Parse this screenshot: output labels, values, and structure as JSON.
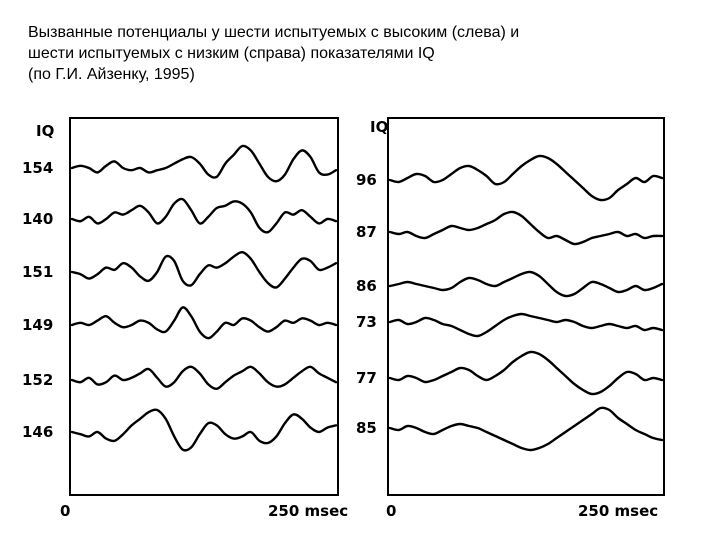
{
  "caption": {
    "line1": "Вызванные потенциалы у шести испытуемых с высоким (слева) и",
    "line2": "шести испытуемых с низким (справа) показателями IQ",
    "line3": "(по Г.И. Айзенку, 1995)"
  },
  "chart_data": [
    {
      "type": "line",
      "panel": "left",
      "header": "IQ",
      "x_tick_labels": [
        "0",
        "250 msec"
      ],
      "x_ticks": [
        0,
        250
      ],
      "xlim": [
        0,
        310
      ],
      "series": [
        {
          "name": "154",
          "x": [
            0,
            10,
            20,
            30,
            40,
            50,
            60,
            70,
            80,
            90,
            100,
            110,
            120,
            130,
            140,
            150,
            160,
            170,
            180,
            190,
            200,
            210,
            220,
            230,
            240,
            250,
            260,
            270,
            280,
            290,
            300,
            310
          ],
          "values": [
            0,
            1,
            0,
            -2,
            1,
            3,
            0,
            -1,
            0,
            -2,
            -1,
            0,
            2,
            4,
            5,
            2,
            -3,
            -4,
            2,
            6,
            10,
            8,
            2,
            -4,
            -6,
            -3,
            4,
            8,
            5,
            -2,
            -3,
            -1
          ]
        },
        {
          "name": "140",
          "x": [
            0,
            10,
            20,
            30,
            40,
            50,
            60,
            70,
            80,
            90,
            100,
            110,
            120,
            130,
            140,
            150,
            160,
            170,
            180,
            190,
            200,
            210,
            220,
            230,
            240,
            250,
            260,
            270,
            280,
            290,
            300,
            310
          ],
          "values": [
            0,
            -1,
            1,
            -2,
            0,
            3,
            2,
            4,
            6,
            3,
            -2,
            1,
            7,
            9,
            4,
            -2,
            1,
            5,
            6,
            8,
            7,
            3,
            -4,
            -6,
            -2,
            3,
            2,
            4,
            1,
            -2,
            0,
            -1
          ]
        },
        {
          "name": "151",
          "x": [
            0,
            10,
            20,
            30,
            40,
            50,
            60,
            70,
            80,
            90,
            100,
            110,
            120,
            130,
            140,
            150,
            160,
            170,
            180,
            190,
            200,
            210,
            220,
            230,
            240,
            250,
            260,
            270,
            280,
            290,
            300,
            310
          ],
          "values": [
            0,
            -1,
            -3,
            -1,
            2,
            1,
            4,
            2,
            -2,
            -4,
            0,
            7,
            5,
            -4,
            -6,
            -1,
            3,
            2,
            4,
            7,
            9,
            6,
            0,
            -5,
            -7,
            -3,
            2,
            6,
            5,
            1,
            2,
            4
          ]
        },
        {
          "name": "149",
          "x": [
            0,
            10,
            20,
            30,
            40,
            50,
            60,
            70,
            80,
            90,
            100,
            110,
            120,
            130,
            140,
            150,
            160,
            170,
            180,
            190,
            200,
            210,
            220,
            230,
            240,
            250,
            260,
            270,
            280,
            290,
            300,
            310
          ],
          "values": [
            0,
            1,
            0,
            2,
            4,
            1,
            -1,
            0,
            2,
            1,
            -2,
            -3,
            2,
            8,
            4,
            -3,
            -6,
            -3,
            1,
            0,
            3,
            2,
            -1,
            -3,
            -1,
            2,
            1,
            3,
            2,
            0,
            1,
            0
          ]
        },
        {
          "name": "152",
          "x": [
            0,
            10,
            20,
            30,
            40,
            50,
            60,
            70,
            80,
            90,
            100,
            110,
            120,
            130,
            140,
            150,
            160,
            170,
            180,
            190,
            200,
            210,
            220,
            230,
            240,
            250,
            260,
            270,
            280,
            290,
            300,
            310
          ],
          "values": [
            0,
            -1,
            1,
            -2,
            -1,
            2,
            0,
            1,
            3,
            5,
            1,
            -3,
            -1,
            4,
            6,
            3,
            -2,
            -4,
            -1,
            2,
            4,
            6,
            3,
            -1,
            -3,
            -2,
            1,
            4,
            6,
            3,
            1,
            -1
          ]
        },
        {
          "name": "146",
          "x": [
            0,
            10,
            20,
            30,
            40,
            50,
            60,
            70,
            80,
            90,
            100,
            110,
            120,
            130,
            140,
            150,
            160,
            170,
            180,
            190,
            200,
            210,
            220,
            230,
            240,
            250,
            260,
            270,
            280,
            290,
            300,
            310
          ],
          "values": [
            0,
            -1,
            -2,
            0,
            -3,
            -4,
            -1,
            3,
            6,
            9,
            10,
            6,
            -2,
            -8,
            -7,
            -1,
            4,
            3,
            -1,
            -3,
            -2,
            0,
            -4,
            -5,
            -2,
            4,
            8,
            6,
            2,
            0,
            2,
            3
          ]
        }
      ]
    },
    {
      "type": "line",
      "panel": "right",
      "header": "IQ",
      "x_tick_labels": [
        "0",
        "250 msec"
      ],
      "x_ticks": [
        0,
        250
      ],
      "xlim": [
        0,
        310
      ],
      "series": [
        {
          "name": "96",
          "x": [
            0,
            10,
            20,
            30,
            40,
            50,
            60,
            70,
            80,
            90,
            100,
            110,
            120,
            130,
            140,
            150,
            160,
            170,
            180,
            190,
            200,
            210,
            220,
            230,
            240,
            250,
            260,
            270,
            280,
            290,
            300,
            310
          ],
          "values": [
            0,
            -1,
            1,
            3,
            2,
            -1,
            0,
            3,
            6,
            7,
            5,
            2,
            -2,
            -1,
            3,
            7,
            10,
            12,
            11,
            8,
            4,
            0,
            -4,
            -8,
            -10,
            -9,
            -5,
            -2,
            1,
            -1,
            2,
            1
          ]
        },
        {
          "name": "87",
          "x": [
            0,
            10,
            20,
            30,
            40,
            50,
            60,
            70,
            80,
            90,
            100,
            110,
            120,
            130,
            140,
            150,
            160,
            170,
            180,
            190,
            200,
            210,
            220,
            230,
            240,
            250,
            260,
            270,
            280,
            290,
            300,
            310
          ],
          "values": [
            0,
            -1,
            0,
            -2,
            -3,
            -1,
            1,
            3,
            2,
            1,
            2,
            4,
            6,
            9,
            10,
            8,
            4,
            0,
            -3,
            -2,
            -4,
            -6,
            -5,
            -3,
            -2,
            -1,
            0,
            -2,
            -1,
            -3,
            -2,
            -2
          ]
        },
        {
          "name": "86",
          "x": [
            0,
            10,
            20,
            30,
            40,
            50,
            60,
            70,
            80,
            90,
            100,
            110,
            120,
            130,
            140,
            150,
            160,
            170,
            180,
            190,
            200,
            210,
            220,
            230,
            240,
            250,
            260,
            270,
            280,
            290,
            300,
            310
          ],
          "values": [
            0,
            1,
            2,
            1,
            0,
            -1,
            -2,
            -1,
            2,
            4,
            3,
            1,
            0,
            2,
            4,
            6,
            7,
            5,
            1,
            -3,
            -5,
            -4,
            -1,
            2,
            1,
            -1,
            -3,
            -2,
            0,
            -2,
            -1,
            1
          ]
        },
        {
          "name": "73",
          "x": [
            0,
            10,
            20,
            30,
            40,
            50,
            60,
            70,
            80,
            90,
            100,
            110,
            120,
            130,
            140,
            150,
            160,
            170,
            180,
            190,
            200,
            210,
            220,
            230,
            240,
            250,
            260,
            270,
            280,
            290,
            300,
            310
          ],
          "values": [
            0,
            1,
            -1,
            0,
            2,
            1,
            -1,
            -2,
            -4,
            -6,
            -7,
            -5,
            -2,
            1,
            3,
            4,
            3,
            2,
            1,
            0,
            1,
            0,
            -2,
            -3,
            -2,
            -1,
            -2,
            -3,
            -2,
            -4,
            -3,
            -4
          ]
        },
        {
          "name": "77",
          "x": [
            0,
            10,
            20,
            30,
            40,
            50,
            60,
            70,
            80,
            90,
            100,
            110,
            120,
            130,
            140,
            150,
            160,
            170,
            180,
            190,
            200,
            210,
            220,
            230,
            240,
            250,
            260,
            270,
            280,
            290,
            300,
            310
          ],
          "values": [
            0,
            -1,
            1,
            0,
            -2,
            -1,
            1,
            3,
            5,
            4,
            1,
            -1,
            1,
            4,
            8,
            11,
            13,
            12,
            9,
            5,
            1,
            -3,
            -6,
            -8,
            -7,
            -4,
            0,
            3,
            2,
            -1,
            0,
            -1
          ]
        },
        {
          "name": "85",
          "x": [
            0,
            10,
            20,
            30,
            40,
            50,
            60,
            70,
            80,
            90,
            100,
            110,
            120,
            130,
            140,
            150,
            160,
            170,
            180,
            190,
            200,
            210,
            220,
            230,
            240,
            250,
            260,
            270,
            280,
            290,
            300,
            310
          ],
          "values": [
            0,
            -1,
            1,
            0,
            -2,
            -3,
            -1,
            1,
            2,
            1,
            0,
            -2,
            -4,
            -6,
            -8,
            -10,
            -11,
            -10,
            -8,
            -5,
            -2,
            1,
            4,
            7,
            10,
            9,
            5,
            2,
            -1,
            -3,
            -5,
            -6
          ]
        }
      ]
    }
  ]
}
